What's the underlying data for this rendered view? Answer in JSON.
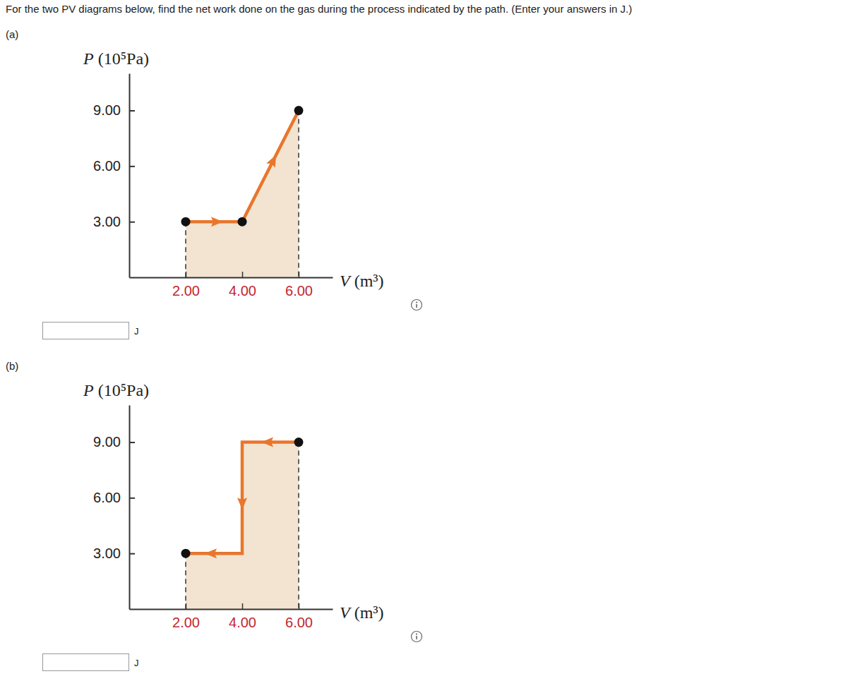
{
  "question": "For the two PV diagrams below, find the net work done on the gas during the process indicated by the path. (Enter your answers in J.)",
  "parts": [
    {
      "label": "(a)",
      "unit": "J"
    },
    {
      "label": "(b)",
      "unit": "J"
    }
  ],
  "chart_data": [
    {
      "type": "area",
      "xlabel": "V (m³)",
      "ylabel": "P (10⁵Pa)",
      "x": [
        2,
        4,
        6
      ],
      "values": [
        3,
        3,
        9
      ],
      "color": "#e8762c",
      "marker": "circle",
      "xlim": [
        0,
        7.2
      ],
      "ylim": [
        0,
        11
      ],
      "xticks": [
        {
          "value": 2,
          "label": "2.00"
        },
        {
          "value": 4,
          "label": "4.00"
        },
        {
          "value": 6,
          "label": "6.00"
        }
      ],
      "yticks": [
        {
          "value": 3,
          "label": "3.00"
        },
        {
          "value": 6,
          "label": "6.00"
        },
        {
          "value": 9,
          "label": "9.00"
        }
      ]
    },
    {
      "type": "area",
      "xlabel": "V (m³)",
      "ylabel": "P (10⁵Pa)",
      "x": [
        6,
        4,
        4,
        2
      ],
      "values": [
        9,
        9,
        3,
        3
      ],
      "color": "#e8762c",
      "marker": "circle",
      "xlim": [
        0,
        7.2
      ],
      "ylim": [
        0,
        11
      ],
      "xticks": [
        {
          "value": 2,
          "label": "2.00"
        },
        {
          "value": 4,
          "label": "4.00"
        },
        {
          "value": 6,
          "label": "6.00"
        }
      ],
      "yticks": [
        {
          "value": 3,
          "label": "3.00"
        },
        {
          "value": 6,
          "label": "6.00"
        },
        {
          "value": 9,
          "label": "9.00"
        }
      ]
    }
  ]
}
